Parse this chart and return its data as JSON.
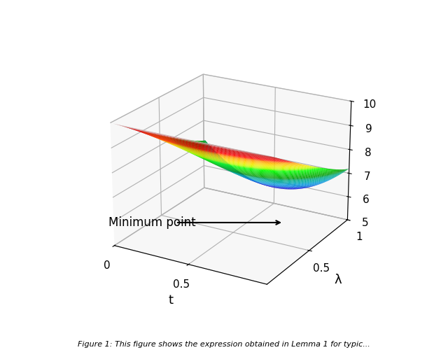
{
  "t_range": [
    0.01,
    20.0
  ],
  "lambda_range": [
    0.01,
    1.0
  ],
  "t_ticks": [
    0,
    0.5
  ],
  "t_ticklabels": [
    "0",
    "0.5"
  ],
  "lambda_ticks": [
    0.5,
    1.0
  ],
  "lambda_ticklabels": [
    "0.5",
    "1"
  ],
  "z_ticks": [
    5,
    6,
    7,
    8,
    9,
    10
  ],
  "zlim": [
    5,
    10
  ],
  "t_label": "t",
  "lambda_label": "λ",
  "annotation_text": "Minimum point",
  "background_color": "#ffffff",
  "n_points": 60,
  "elev": 22,
  "azim": -60
}
